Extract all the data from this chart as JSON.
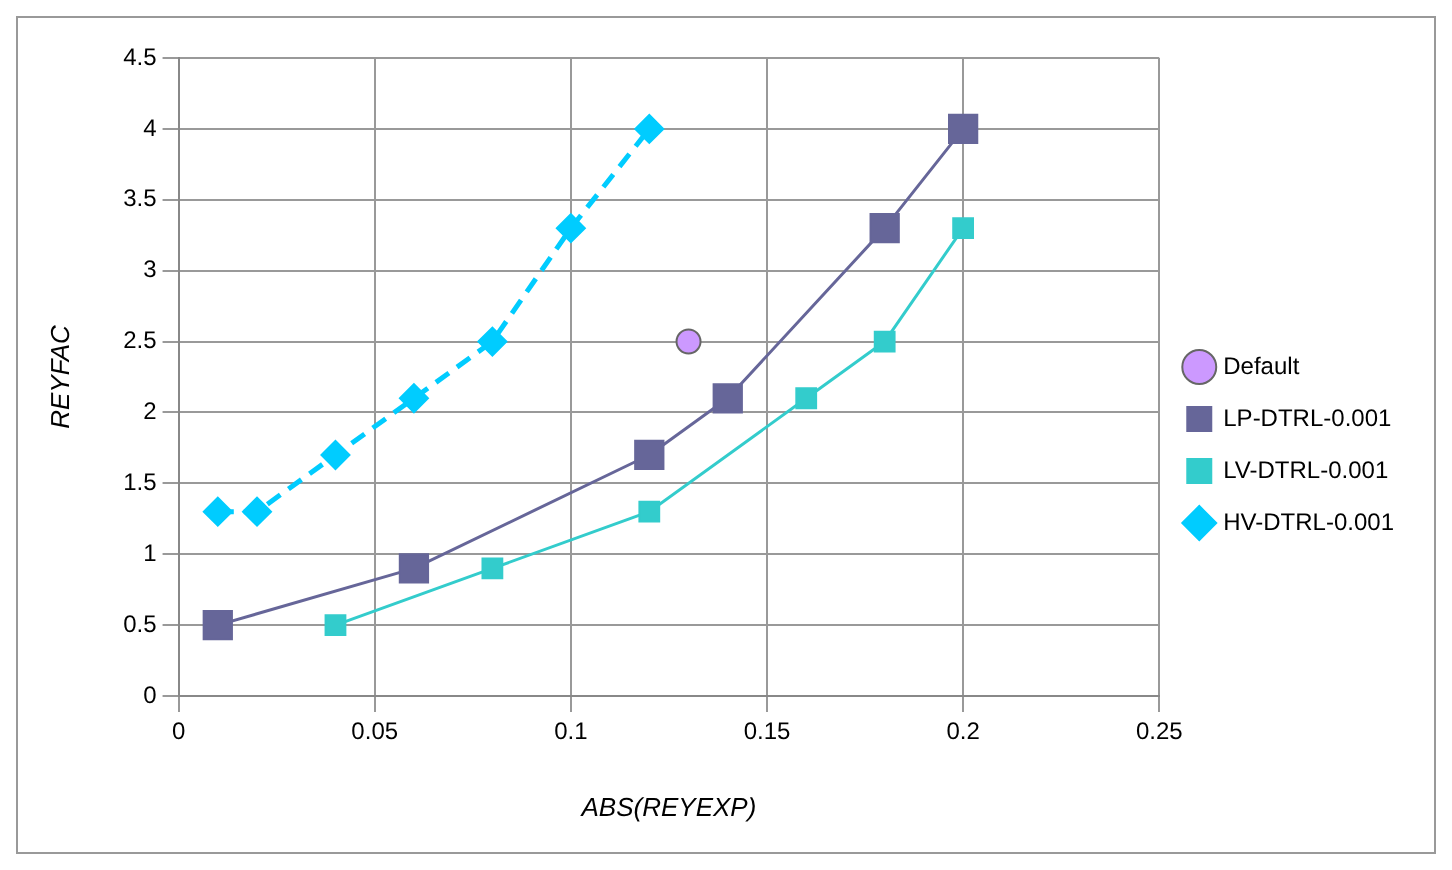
{
  "chart_data": {
    "type": "line",
    "xlabel": "ABS(REYEXP)",
    "ylabel": "REYFAC",
    "xlim": [
      0,
      0.25
    ],
    "xticks": [
      0,
      0.05,
      0.1,
      0.15,
      0.2,
      0.25
    ],
    "ylim": [
      0,
      4.5
    ],
    "yticks": [
      0,
      0.5,
      1,
      1.5,
      2,
      2.5,
      3,
      3.5,
      4,
      4.5
    ],
    "grid": true,
    "legend": "right",
    "series": [
      {
        "name": "Default",
        "type": "scatter",
        "color": "#cc99ff",
        "marker": "circle",
        "x": [
          0.13
        ],
        "values": [
          2.5
        ]
      },
      {
        "name": "LP-DTRL-0.001",
        "color": "#666699",
        "marker": "square",
        "line_style": "solid",
        "x": [
          0.01,
          0.06,
          0.12,
          0.14,
          0.18,
          0.2
        ],
        "values": [
          0.5,
          0.9,
          1.7,
          2.1,
          3.3,
          4.0
        ]
      },
      {
        "name": "LV-DTRL-0.001",
        "color": "#33cccc",
        "marker": "square",
        "line_style": "solid",
        "x": [
          0.04,
          0.08,
          0.12,
          0.16,
          0.18,
          0.2
        ],
        "values": [
          0.5,
          0.9,
          1.3,
          2.1,
          2.5,
          3.3
        ]
      },
      {
        "name": "HV-DTRL-0.001",
        "color": "#00ccff",
        "marker": "diamond",
        "line_style": "dashed",
        "x": [
          0.01,
          0.02,
          0.04,
          0.06,
          0.08,
          0.1,
          0.12
        ],
        "values": [
          1.3,
          1.3,
          1.7,
          2.1,
          2.5,
          3.3,
          4.0
        ]
      }
    ]
  }
}
